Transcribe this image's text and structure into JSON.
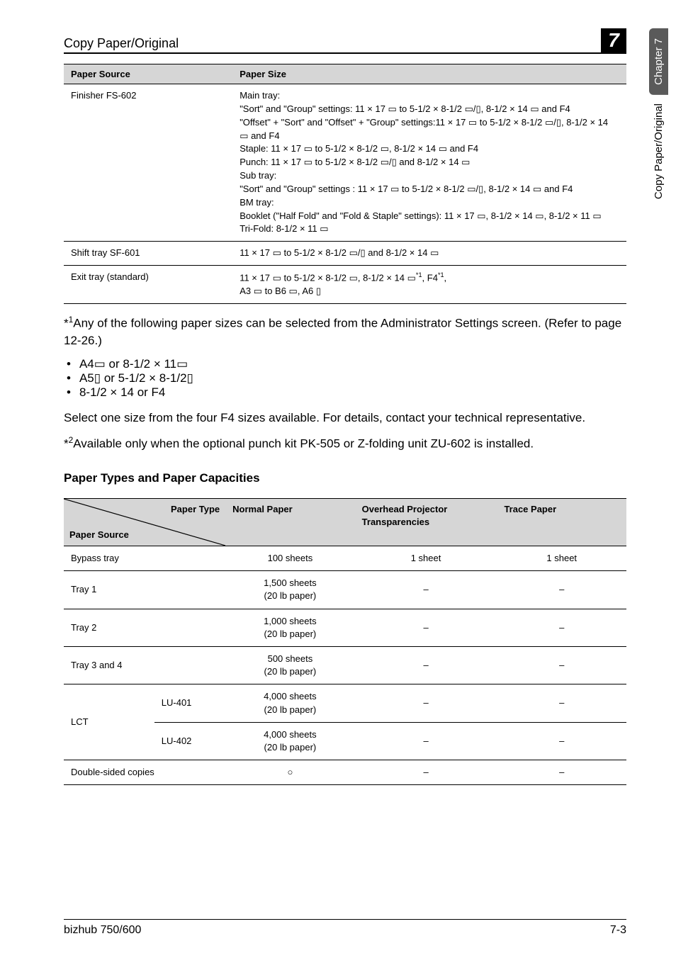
{
  "header": {
    "title": "Copy Paper/Original",
    "page_badge": "7"
  },
  "side": {
    "dark_label": "Chapter 7",
    "light_label": "Copy Paper/Original"
  },
  "table1": {
    "head": {
      "c1": "Paper Source",
      "c2": "Paper Size"
    },
    "rows": [
      {
        "c1": "Finisher FS-602",
        "c2": "Main tray:\n\"Sort\" and \"Group\" settings: 11 × 17 ▭ to 5-1/2 × 8-1/2 ▭/▯, 8-1/2 × 14 ▭ and F4\n\"Offset\" + \"Sort\" and \"Offset\" + \"Group\" settings:11 × 17 ▭ to 5-1/2 × 8-1/2 ▭/▯, 8-1/2 × 14 ▭ and F4\nStaple: 11 × 17 ▭ to 5-1/2 × 8-1/2 ▭, 8-1/2 × 14 ▭ and F4\nPunch: 11 × 17 ▭ to 5-1/2 × 8-1/2 ▭/▯ and 8-1/2 × 14 ▭\nSub tray:\n\"Sort\" and \"Group\" settings : 11 × 17 ▭ to 5-1/2 × 8-1/2 ▭/▯, 8-1/2 × 14 ▭ and F4\nBM tray:\nBooklet (\"Half Fold\" and \"Fold & Staple\" settings): 11 × 17 ▭, 8-1/2 × 14 ▭, 8-1/2 × 11 ▭\nTri-Fold: 8-1/2 × 11 ▭"
      },
      {
        "c1": "Shift tray SF-601",
        "c2": "11 × 17 ▭ to 5-1/2 × 8-1/2 ▭/▯ and 8-1/2 × 14 ▭"
      },
      {
        "c1": "Exit tray (standard)",
        "c2_html": "11 × 17 ▭ to 5-1/2 × 8-1/2 ▭, 8-1/2 × 14 ▭<sup>*1</sup>, F4<sup>*1</sup>,<br>A3 ▭ to B6 ▭, A6 ▯"
      }
    ]
  },
  "para1_html": "*<sup>1</sup>Any of the following paper sizes can be selected from the Administrator Settings screen. (Refer to page 12-26.)",
  "bullets": [
    "A4▭ or 8-1/2 × 11▭",
    "A5▯ or 5-1/2 × 8-1/2▯",
    "8-1/2 × 14 or F4"
  ],
  "para2": "Select one size from the four F4 sizes available. For details, contact your technical representative.",
  "para3_html": "*<sup>2</sup>Available only when the optional punch kit PK-505 or Z-folding unit ZU-602 is installed.",
  "section_heading": "Paper Types and Paper Capacities",
  "table2": {
    "head": {
      "diag_top": "Paper Type",
      "diag_bottom": "Paper Source",
      "c3": "Normal Paper",
      "c4": "Overhead Projector Transparencies",
      "c5": "Trace Paper"
    },
    "rows": [
      {
        "c1": "Bypass tray",
        "c2": "",
        "c3": "100 sheets",
        "c4": "1 sheet",
        "c5": "1 sheet"
      },
      {
        "c1": "Tray 1",
        "c2": "",
        "c3": "1,500 sheets\n(20 lb paper)",
        "c4": "–",
        "c5": "–"
      },
      {
        "c1": "Tray 2",
        "c2": "",
        "c3": "1,000 sheets\n(20 lb paper)",
        "c4": "–",
        "c5": "–"
      },
      {
        "c1": "Tray 3 and 4",
        "c2": "",
        "c3": "500 sheets\n(20 lb paper)",
        "c4": "–",
        "c5": "–"
      },
      {
        "c1": "LCT",
        "c2": "LU-401",
        "c3": "4,000 sheets\n(20 lb paper)",
        "c4": "–",
        "c5": "–",
        "split": true
      },
      {
        "c1": "",
        "c2": "LU-402",
        "c3": "4,000 sheets\n(20 lb paper)",
        "c4": "–",
        "c5": "–"
      },
      {
        "c1": "Double-sided copies",
        "c2": "",
        "c3": "○",
        "c4": "–",
        "c5": "–"
      }
    ]
  },
  "footer": {
    "left": "bizhub 750/600",
    "right": "7-3"
  },
  "colors": {
    "header_bg": "#d6d6d6",
    "tab_bg": "#5a5a5a",
    "text": "#000000",
    "bg": "#ffffff"
  }
}
